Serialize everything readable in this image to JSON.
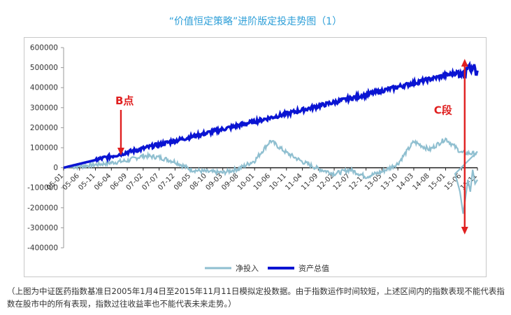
{
  "page": {
    "title": "“价值恒定策略”进阶版定投走势图（1）",
    "caption": "（上图为中证医药指数基准日2005年1月4日至2015年11月11日模拟定投数据。由于指数运作时间较短，上述区间内的指数表现不能代表指数在股市中的所有表现，指数过往收益率也不能代表未来走势。）"
  },
  "chart_data": {
    "type": "line",
    "title": "",
    "xlabel": "",
    "ylabel": "",
    "ylim": [
      -400000,
      600000
    ],
    "y_ticks": [
      600000,
      500000,
      400000,
      300000,
      200000,
      100000,
      0,
      -100000,
      -200000,
      -300000,
      -400000
    ],
    "x_ticks": [
      "05-01",
      "05-06",
      "05-11",
      "06-04",
      "06-09",
      "07-02",
      "07-07",
      "07-12",
      "08-05",
      "08-10",
      "09-03",
      "09-08",
      "10-01",
      "10-06",
      "10-11",
      "11-04",
      "11-09",
      "12-02",
      "12-07",
      "12-12",
      "13-05",
      "13-10",
      "14-03",
      "14-08",
      "15-01",
      "15-06",
      "15-11"
    ],
    "legend_position": "bottom",
    "colors": {
      "net": "#8fbfd0",
      "total": "#0a14d2",
      "annotation": "#e02020"
    },
    "series": [
      {
        "name": "净投入",
        "x": [
          0,
          2,
          4,
          5,
          6,
          7,
          8,
          9,
          10,
          11,
          12,
          13,
          14,
          15,
          16,
          17,
          18,
          19,
          20,
          21,
          22,
          23,
          24,
          25,
          26
        ],
        "values": [
          0,
          15000,
          35000,
          60000,
          52000,
          30000,
          -10000,
          -20000,
          -25000,
          -5000,
          35000,
          135000,
          75000,
          30000,
          -5000,
          -30000,
          -10000,
          -45000,
          -20000,
          20000,
          130000,
          90000,
          145000,
          75000,
          70000
        ]
      },
      {
        "name": "资产总值",
        "x": [
          0,
          26
        ],
        "values": [
          0,
          500000
        ]
      }
    ],
    "annotations": [
      {
        "label": "B点",
        "x": 3.6,
        "y": 65000
      },
      {
        "label": "C段",
        "x": 25.2,
        "y_from": 540000,
        "y_to": -330000
      }
    ]
  }
}
